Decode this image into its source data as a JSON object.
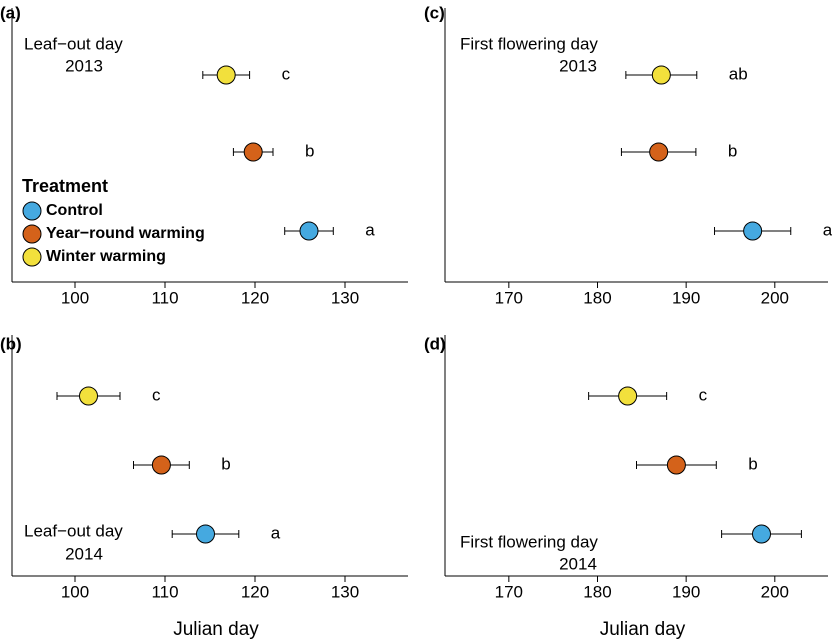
{
  "chart_data": [
    {
      "type": "dot",
      "panel": "(a)",
      "annotation": [
        "Leaf−out day",
        "2013"
      ],
      "xlim": [
        93,
        137
      ],
      "xticks": [
        100,
        110,
        120,
        130
      ],
      "legend_title": "Treatment",
      "series": [
        {
          "name": "Control",
          "color": "#45a9e0",
          "values": [
            126.0
          ],
          "errors": [
            2.7
          ],
          "letters": [
            "a"
          ]
        },
        {
          "name": "Year−round warming",
          "color": "#d4621a",
          "values": [
            119.8
          ],
          "errors": [
            2.2
          ],
          "letters": [
            "b"
          ]
        },
        {
          "name": "Winter warming",
          "color": "#f2e03c",
          "values": [
            116.8
          ],
          "errors": [
            2.6
          ],
          "letters": [
            "c"
          ]
        }
      ]
    },
    {
      "type": "dot",
      "panel": "(b)",
      "annotation": [
        "Leaf−out day",
        "2014"
      ],
      "xlim": [
        93,
        137
      ],
      "xticks": [
        100,
        110,
        120,
        130
      ],
      "xlabel": "Julian day",
      "series": [
        {
          "color": "#45a9e0",
          "values": [
            114.5
          ],
          "errors": [
            3.7
          ],
          "letters": [
            "a"
          ]
        },
        {
          "color": "#d4621a",
          "values": [
            109.6
          ],
          "errors": [
            3.1
          ],
          "letters": [
            "b"
          ]
        },
        {
          "color": "#f2e03c",
          "values": [
            101.5
          ],
          "errors": [
            3.5
          ],
          "letters": [
            "c"
          ]
        }
      ]
    },
    {
      "type": "dot",
      "panel": "(c)",
      "annotation": [
        "First flowering day",
        "2013"
      ],
      "xlim": [
        162.8,
        206
      ],
      "xticks": [
        170,
        180,
        190,
        200
      ],
      "series": [
        {
          "color": "#45a9e0",
          "values": [
            197.5
          ],
          "errors": [
            4.3
          ],
          "letters": [
            "a"
          ]
        },
        {
          "color": "#d4621a",
          "values": [
            186.9
          ],
          "errors": [
            4.2
          ],
          "letters": [
            "b"
          ]
        },
        {
          "color": "#f2e03c",
          "values": [
            187.2
          ],
          "errors": [
            4.0
          ],
          "letters": [
            "ab"
          ]
        }
      ]
    },
    {
      "type": "dot",
      "panel": "(d)",
      "annotation": [
        "First flowering day",
        "2014"
      ],
      "xlim": [
        162.8,
        206
      ],
      "xticks": [
        170,
        180,
        190,
        200
      ],
      "xlabel": "Julian day",
      "series": [
        {
          "color": "#45a9e0",
          "values": [
            198.5
          ],
          "errors": [
            4.5
          ],
          "letters": [
            "a"
          ]
        },
        {
          "color": "#d4621a",
          "values": [
            188.9
          ],
          "errors": [
            4.5
          ],
          "letters": [
            "b"
          ]
        },
        {
          "color": "#f2e03c",
          "values": [
            183.4
          ],
          "errors": [
            4.4
          ],
          "letters": [
            "c"
          ]
        }
      ]
    }
  ]
}
